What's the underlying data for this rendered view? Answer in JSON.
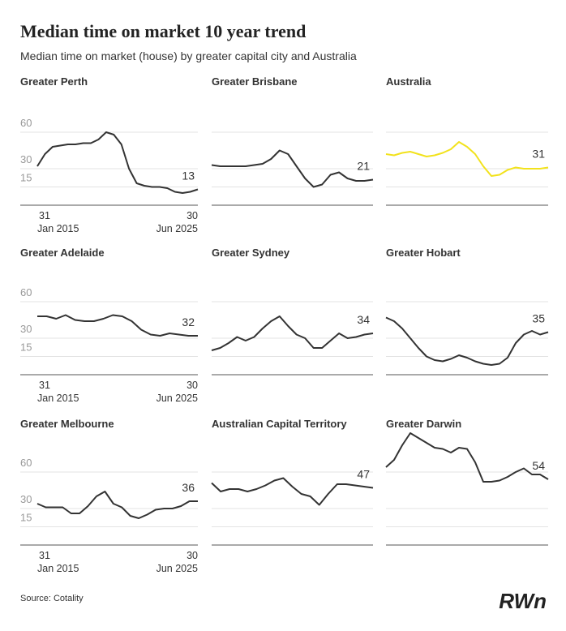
{
  "title": "Median time on market 10 year trend",
  "subtitle": "Median time on market (house) by greater capital city and Australia",
  "source": "Source: Cotality",
  "logo": "RWn",
  "chart_data": [
    {
      "type": "line",
      "title": "Greater Perth",
      "color": "#333333",
      "ylim": [
        0,
        100
      ],
      "yticks": [
        15,
        30,
        60
      ],
      "show_tick_labels": true,
      "xlabels": [
        [
          "31",
          "Jan 2015"
        ],
        [
          "30",
          "Jun 2025"
        ]
      ],
      "values": [
        32,
        42,
        48,
        49,
        50,
        50,
        51,
        51,
        54,
        60,
        58,
        50,
        30,
        18,
        16,
        15,
        15,
        14,
        11,
        10,
        11,
        13
      ]
    },
    {
      "type": "line",
      "title": "Greater Brisbane",
      "color": "#333333",
      "ylim": [
        0,
        100
      ],
      "yticks": [
        15,
        30,
        60
      ],
      "show_tick_labels": false,
      "values": [
        33,
        32,
        32,
        32,
        32,
        33,
        34,
        38,
        45,
        42,
        32,
        22,
        15,
        17,
        25,
        27,
        22,
        20,
        20,
        21
      ]
    },
    {
      "type": "line",
      "title": "Australia",
      "color": "#f2e21c",
      "ylim": [
        0,
        100
      ],
      "yticks": [
        15,
        30,
        60
      ],
      "show_tick_labels": false,
      "values": [
        42,
        41,
        43,
        44,
        42,
        40,
        41,
        43,
        46,
        52,
        48,
        42,
        32,
        24,
        25,
        29,
        31,
        30,
        30,
        30,
        31
      ]
    },
    {
      "type": "line",
      "title": "Greater Adelaide",
      "color": "#333333",
      "ylim": [
        0,
        100
      ],
      "yticks": [
        15,
        30,
        60
      ],
      "show_tick_labels": true,
      "xlabels": [
        [
          "31",
          "Jan 2015"
        ],
        [
          "30",
          "Jun 2025"
        ]
      ],
      "values": [
        48,
        48,
        46,
        49,
        45,
        44,
        44,
        46,
        49,
        48,
        44,
        37,
        33,
        32,
        34,
        33,
        32,
        32
      ]
    },
    {
      "type": "line",
      "title": "Greater Sydney",
      "color": "#333333",
      "ylim": [
        0,
        100
      ],
      "yticks": [
        15,
        30,
        60
      ],
      "show_tick_labels": false,
      "values": [
        20,
        22,
        26,
        31,
        28,
        31,
        38,
        44,
        48,
        40,
        33,
        30,
        22,
        22,
        28,
        34,
        30,
        31,
        33,
        34
      ]
    },
    {
      "type": "line",
      "title": "Greater Hobart",
      "color": "#333333",
      "ylim": [
        0,
        100
      ],
      "yticks": [
        15,
        30,
        60
      ],
      "show_tick_labels": false,
      "values": [
        47,
        44,
        38,
        30,
        22,
        15,
        12,
        11,
        13,
        16,
        14,
        11,
        9,
        8,
        9,
        14,
        26,
        33,
        36,
        33,
        35
      ]
    },
    {
      "type": "line",
      "title": "Greater Melbourne",
      "color": "#333333",
      "ylim": [
        0,
        100
      ],
      "yticks": [
        15,
        30,
        60
      ],
      "show_tick_labels": true,
      "xlabels": [
        [
          "31",
          "Jan 2015"
        ],
        [
          "30",
          "Jun 2025"
        ]
      ],
      "values": [
        34,
        31,
        31,
        31,
        26,
        26,
        32,
        40,
        44,
        34,
        31,
        24,
        22,
        25,
        29,
        30,
        30,
        32,
        36,
        36
      ]
    },
    {
      "type": "line",
      "title": "Australian Capital Territory",
      "color": "#333333",
      "ylim": [
        0,
        100
      ],
      "yticks": [
        15,
        30,
        60
      ],
      "show_tick_labels": false,
      "values": [
        51,
        44,
        46,
        46,
        44,
        46,
        49,
        53,
        55,
        48,
        42,
        40,
        33,
        42,
        50,
        50,
        49,
        48,
        47
      ]
    },
    {
      "type": "line",
      "title": "Greater Darwin",
      "color": "#333333",
      "ylim": [
        0,
        100
      ],
      "yticks": [
        15,
        30,
        60
      ],
      "show_tick_labels": false,
      "values": [
        64,
        70,
        82,
        92,
        88,
        84,
        80,
        79,
        76,
        80,
        79,
        68,
        52,
        52,
        53,
        56,
        60,
        63,
        58,
        58,
        54
      ]
    }
  ]
}
